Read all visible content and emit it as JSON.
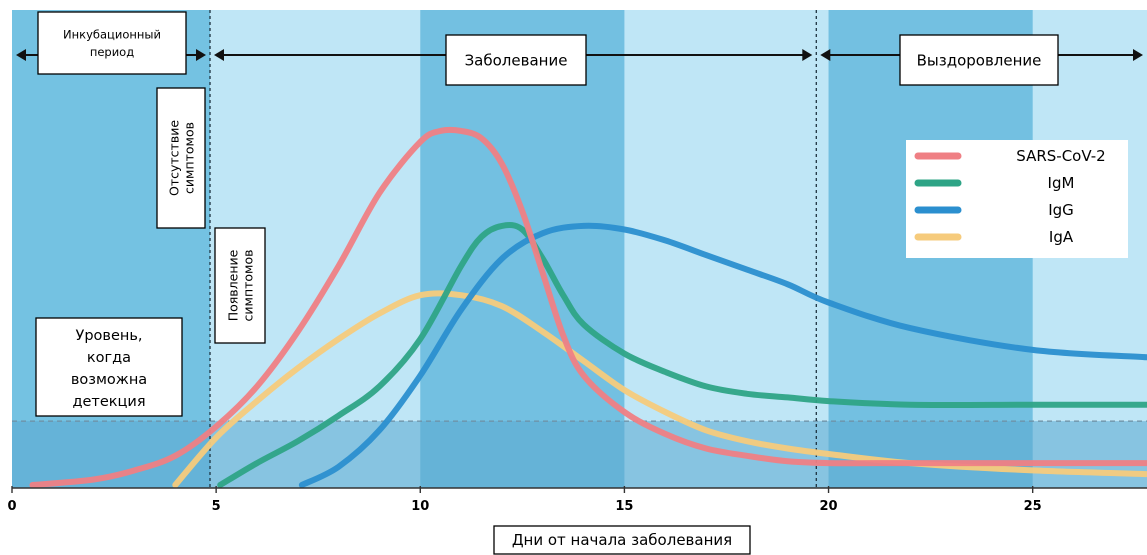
{
  "chart_data": {
    "type": "line",
    "xlabel": "Дни от начала заболевания",
    "ylabel": "",
    "xlim": [
      0,
      27.8
    ],
    "ylim": [
      0,
      100
    ],
    "x_ticks": [
      0,
      5,
      10,
      15,
      20,
      25
    ],
    "grid": false,
    "legend_position": "top-right",
    "detection_level": 17.5,
    "phase_boundaries": [
      4.85,
      19.7
    ],
    "shaded_bands": [
      [
        0,
        4.85
      ],
      [
        10,
        15
      ],
      [
        20,
        25
      ]
    ],
    "phases": [
      {
        "label_lines": [
          "Инкубационный",
          "период"
        ],
        "range": [
          0,
          4.85
        ]
      },
      {
        "label_lines": [
          "Заболевание"
        ],
        "range": [
          4.85,
          19.7
        ]
      },
      {
        "label_lines": [
          "Выздоровление"
        ],
        "range": [
          19.7,
          27.8
        ]
      }
    ],
    "annotations": {
      "no_symptoms": [
        "Отсутствие",
        "симптомов"
      ],
      "symptom_onset": [
        "Появление",
        "симптомов"
      ],
      "detection_level": [
        "Уровень,",
        "когда",
        "возможна",
        "детекция"
      ]
    },
    "colors": {
      "background": "#74c2e2",
      "band_light": "#bfe6f6",
      "band_dark": "#5ab3d9",
      "detection_band": "#5aa8cf"
    },
    "series": [
      {
        "name": "SARS-CoV-2",
        "color": "#ef7f84",
        "x": [
          0.5,
          2,
          3,
          4,
          5,
          6,
          7,
          8,
          9,
          10,
          10.5,
          11,
          11.5,
          12,
          12.5,
          13,
          13.5,
          14,
          15,
          16,
          17,
          18,
          19,
          20,
          22,
          25,
          27.8
        ],
        "y": [
          0,
          1.5,
          4,
          8,
          16,
          27,
          42,
          60,
          80,
          94,
          97,
          97,
          95,
          88,
          75,
          58,
          41,
          30,
          20,
          14,
          10,
          8,
          6.5,
          6,
          6,
          6,
          6
        ]
      },
      {
        "name": "IgM",
        "color": "#2ea486",
        "x": [
          5.1,
          6,
          7,
          8,
          9,
          10,
          11,
          11.5,
          12,
          12.5,
          13,
          13.5,
          14,
          15,
          16,
          17,
          18,
          19,
          20,
          22,
          25,
          27.8
        ],
        "y": [
          0,
          6,
          12,
          19,
          27,
          40,
          60,
          68,
          71,
          70,
          62,
          52,
          44,
          36,
          31,
          27,
          25,
          24,
          23,
          22,
          22,
          22
        ]
      },
      {
        "name": "IgG",
        "color": "#2b8fcf",
        "x": [
          7.1,
          8,
          9,
          10,
          11,
          12,
          13,
          14,
          15,
          16,
          17,
          18,
          19,
          20,
          22,
          25,
          27.8
        ],
        "y": [
          0,
          5,
          15,
          30,
          48,
          62,
          69,
          71,
          70,
          67,
          63,
          59,
          55,
          50,
          43,
          37,
          35
        ]
      },
      {
        "name": "IgA",
        "color": "#f6cb7c",
        "x": [
          4,
          5,
          6,
          7,
          8,
          9,
          10,
          11,
          12,
          13,
          14,
          15,
          16,
          17,
          18,
          19,
          20,
          22,
          25,
          27.8
        ],
        "y": [
          0,
          13,
          23,
          32,
          40,
          47,
          52,
          52,
          49,
          42,
          34,
          26,
          20,
          15,
          12,
          10,
          8.5,
          6,
          4,
          3
        ]
      }
    ]
  }
}
